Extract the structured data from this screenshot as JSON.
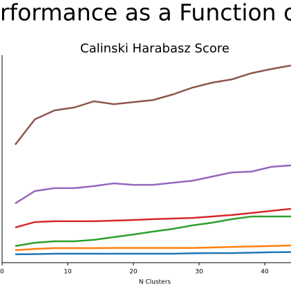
{
  "chart_data": {
    "type": "line",
    "title": "erformance as a Function o",
    "subtitle": "Calinski Harabasz Score",
    "x_label": "N Clusters",
    "x": [
      2,
      5,
      8,
      11,
      14,
      17,
      20,
      23,
      26,
      29,
      32,
      35,
      38,
      41,
      44
    ],
    "xlim": [
      0,
      44
    ],
    "xticks": [
      0,
      10,
      20,
      30,
      40
    ],
    "ylim": [
      0,
      100
    ],
    "series": [
      {
        "color": "#1f77b4",
        "values": [
          3.7,
          3.8,
          4,
          4,
          4,
          4,
          4,
          4,
          4,
          4.2,
          4.3,
          4.3,
          4.5,
          4.7,
          4.8
        ]
      },
      {
        "color": "#ff7f0e",
        "values": [
          5.7,
          6.3,
          6.7,
          6.7,
          6.7,
          6.8,
          6.8,
          6.8,
          6.8,
          6.8,
          7,
          7.3,
          7.5,
          7.7,
          8
        ]
      },
      {
        "color": "#2ca02c",
        "values": [
          7.7,
          9.3,
          10,
          10,
          10.7,
          12,
          13.3,
          14.7,
          16,
          17.7,
          19,
          20.7,
          22,
          22,
          22
        ]
      },
      {
        "color": "#d62728",
        "values": [
          16.7,
          19.3,
          19.7,
          19.7,
          19.7,
          20,
          20.3,
          20.7,
          21,
          21.3,
          22,
          22.7,
          23.7,
          24.7,
          25.7
        ]
      },
      {
        "color": "#9467bd",
        "values": [
          28.3,
          34.3,
          35.7,
          35.7,
          36.7,
          38,
          37.3,
          37.3,
          38.3,
          39.3,
          41.3,
          43.3,
          43.7,
          46,
          46.7
        ]
      },
      {
        "color": "#8c564b",
        "values": [
          56.7,
          69,
          73.3,
          74.7,
          77.7,
          76.3,
          77.3,
          78.3,
          81,
          84.3,
          86.7,
          88.3,
          91.3,
          93.3,
          95
        ]
      }
    ]
  }
}
